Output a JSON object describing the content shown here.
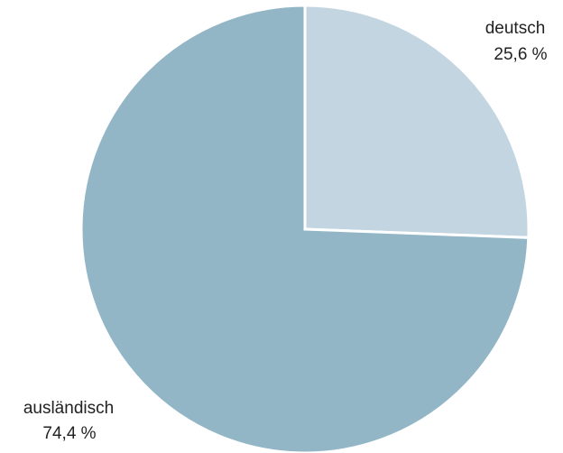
{
  "chart_data": {
    "type": "pie",
    "title": "",
    "slices": [
      {
        "label": "deutsch",
        "value": 25.6,
        "value_label": "25,6 %",
        "color": "#c3d5e1"
      },
      {
        "label": "ausländisch",
        "value": 74.4,
        "value_label": "74,4 %",
        "color": "#93b6c7"
      }
    ],
    "start_angle": "12 o'clock",
    "direction": "clockwise",
    "legend": "none",
    "slice_border_color": "#ffffff"
  }
}
